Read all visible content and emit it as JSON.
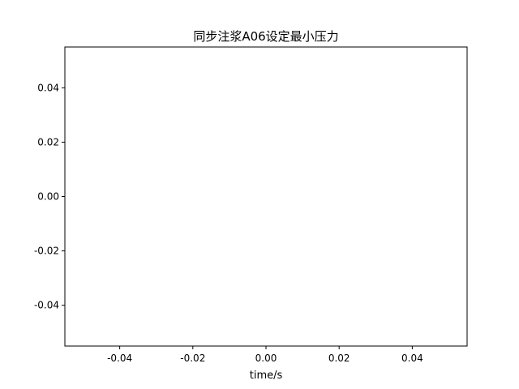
{
  "chart_data": {
    "type": "line",
    "title": "同步注浆A06设定最小压力",
    "xlabel": "time/s",
    "ylabel": "",
    "xlim": [
      -0.055,
      0.055
    ],
    "ylim": [
      -0.055,
      0.055
    ],
    "x_ticks": [
      {
        "value": -0.04,
        "label": "-0.04"
      },
      {
        "value": -0.02,
        "label": "-0.02"
      },
      {
        "value": 0.0,
        "label": "0.00"
      },
      {
        "value": 0.02,
        "label": "0.02"
      },
      {
        "value": 0.04,
        "label": "0.04"
      }
    ],
    "y_ticks": [
      {
        "value": 0.04,
        "label": "0.04"
      },
      {
        "value": 0.02,
        "label": "0.02"
      },
      {
        "value": 0.0,
        "label": "0.00"
      },
      {
        "value": -0.02,
        "label": "-0.02"
      },
      {
        "value": -0.04,
        "label": "-0.04"
      }
    ],
    "series": [],
    "grid": false,
    "legend": "none",
    "colors": {
      "axes": "#000000",
      "background": "#ffffff"
    }
  }
}
